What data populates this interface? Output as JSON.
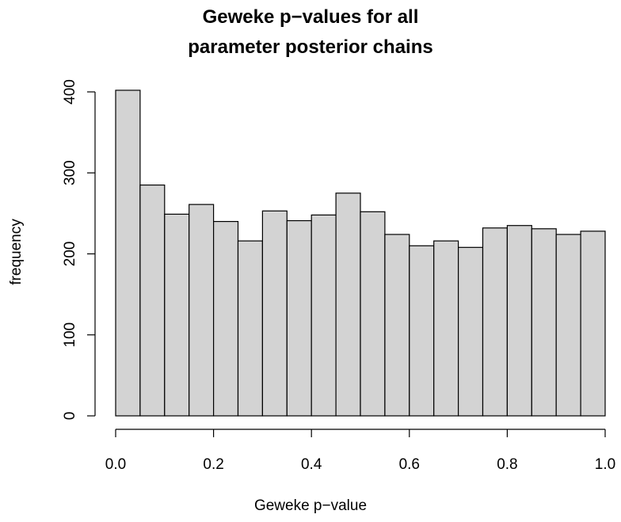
{
  "chart_data": {
    "type": "bar",
    "title_lines": [
      "Geweke p−values for all",
      "parameter posterior chains"
    ],
    "xlabel": "Geweke p−value",
    "ylabel": "frequency",
    "bin_edges": [
      0.0,
      0.05,
      0.1,
      0.15,
      0.2,
      0.25,
      0.3,
      0.35,
      0.4,
      0.45,
      0.5,
      0.55,
      0.6,
      0.65,
      0.7,
      0.75,
      0.8,
      0.85,
      0.9,
      0.95,
      1.0
    ],
    "values": [
      402,
      285,
      249,
      261,
      240,
      216,
      253,
      241,
      248,
      275,
      252,
      224,
      210,
      216,
      208,
      232,
      235,
      231,
      224,
      228
    ],
    "xlim": [
      0.0,
      1.0
    ],
    "ylim": [
      0,
      400
    ],
    "x_ticks": [
      0.0,
      0.2,
      0.4,
      0.6,
      0.8,
      1.0
    ],
    "x_tick_labels": [
      "0.0",
      "0.2",
      "0.4",
      "0.6",
      "0.8",
      "1.0"
    ],
    "y_ticks": [
      0,
      100,
      200,
      300,
      400
    ],
    "y_tick_labels": [
      "0",
      "100",
      "200",
      "300",
      "400"
    ],
    "bar_fill": "#d3d3d3",
    "bar_stroke": "#000000",
    "grid": false
  }
}
